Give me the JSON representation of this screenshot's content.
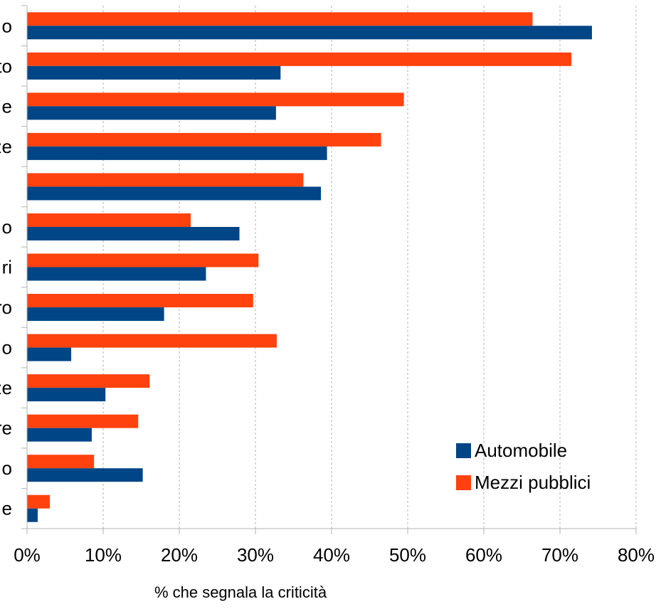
{
  "chart_data": {
    "type": "bar",
    "orientation": "horizontal",
    "categories": [
      "o",
      "to",
      "e",
      "ze",
      "",
      "o",
      "ri",
      "ro",
      "o",
      "ze",
      "re",
      "o",
      "e"
    ],
    "series": [
      {
        "name": "Automobile",
        "color": "#004586",
        "values": [
          74.2,
          33.3,
          32.7,
          39.4,
          38.6,
          27.9,
          23.5,
          18.0,
          5.8,
          10.3,
          8.5,
          15.2,
          1.4
        ]
      },
      {
        "name": "Mezzi pubblici",
        "color": "#ff420e",
        "values": [
          66.4,
          71.5,
          49.5,
          46.5,
          36.3,
          21.5,
          30.4,
          29.7,
          32.8,
          16.1,
          14.6,
          8.8,
          3.0
        ]
      }
    ],
    "xticks": [
      "0%",
      "10%",
      "20%",
      "30%",
      "40%",
      "50%",
      "60%",
      "70%",
      "80%"
    ],
    "xlim": [
      0,
      80
    ],
    "xlabel": "% che segnala la criticità",
    "ylabel": "",
    "title": "",
    "grid": "vertical dashed",
    "legend_position": "bottom-right"
  }
}
